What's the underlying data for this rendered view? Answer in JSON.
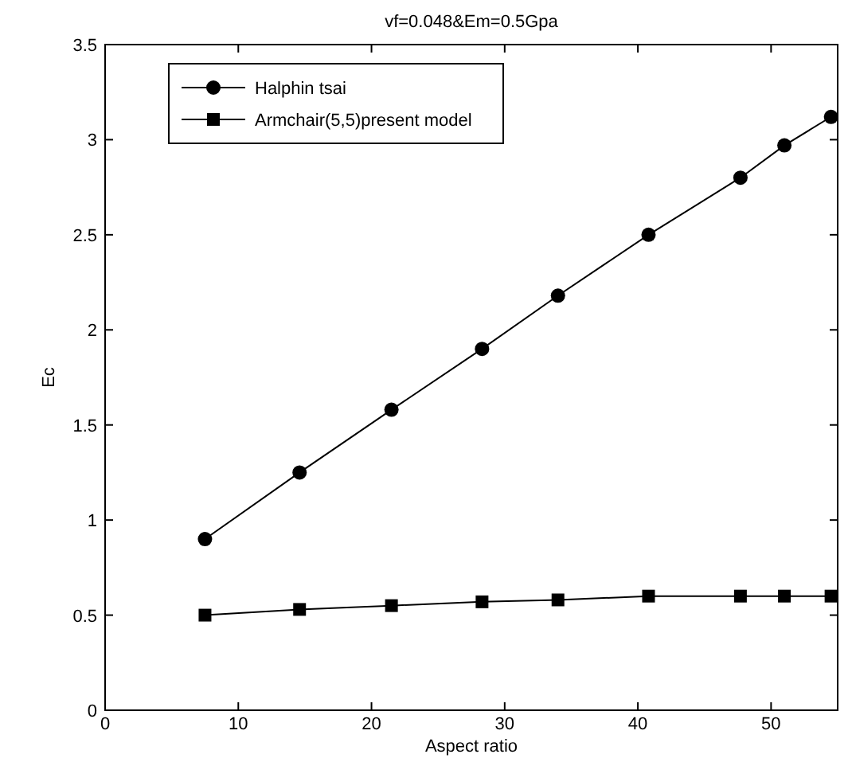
{
  "chart_data": {
    "type": "line",
    "title": "vf=0.048&Em=0.5Gpa",
    "xlabel": "Aspect ratio",
    "ylabel": "Ec",
    "x": [
      7.5,
      14.6,
      21.5,
      28.3,
      34,
      40.8,
      47.7,
      51,
      54.5
    ],
    "series": [
      {
        "name": "Halphin tsai",
        "color": "#000000",
        "marker": "circle",
        "values": [
          0.9,
          1.25,
          1.58,
          1.9,
          2.18,
          2.5,
          2.8,
          2.97,
          3.12
        ]
      },
      {
        "name": "Armchair(5,5)present model",
        "color": "#000000",
        "marker": "square",
        "values": [
          0.5,
          0.53,
          0.55,
          0.57,
          0.58,
          0.6,
          0.6,
          0.6,
          0.6
        ]
      }
    ],
    "xlim": [
      0,
      55
    ],
    "xticks": [
      0,
      10,
      20,
      30,
      40,
      50
    ],
    "ylim": [
      0,
      3.5
    ],
    "yticks": [
      0,
      0.5,
      1,
      1.5,
      2,
      2.5,
      3,
      3.5
    ],
    "grid": false,
    "legend": "top left",
    "line_style": "solid"
  }
}
